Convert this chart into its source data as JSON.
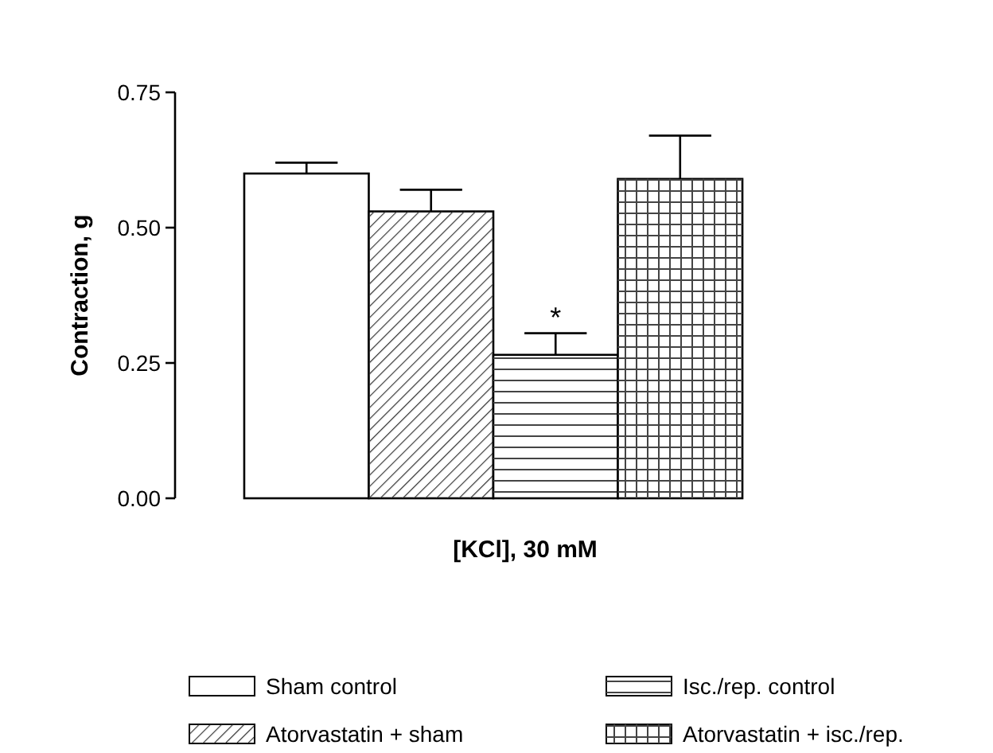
{
  "chart_data": {
    "type": "bar",
    "xlabel": "[KCl], 30 mM",
    "ylabel": "Contraction, g",
    "categories": [
      null
    ],
    "series": [
      {
        "name": "Sham control",
        "color": "#ffffff",
        "values": [
          0.6
        ],
        "errors": [
          0.02
        ]
      },
      {
        "name": "Atorvastatin + sham",
        "color": "#ffffff",
        "values": [
          0.53
        ],
        "errors": [
          0.04
        ]
      },
      {
        "name": "Isc./rep. control",
        "color": "#ffffff",
        "values": [
          0.265
        ],
        "errors": [
          0.04
        ]
      },
      {
        "name": "Atorvastatin + isc./rep.",
        "color": "#ffffff",
        "values": [
          0.59
        ],
        "errors": [
          0.08
        ]
      }
    ],
    "ylim": [
      0,
      0.75
    ],
    "yticks": [
      {
        "value": 0,
        "label": "0.00"
      },
      0.25,
      {
        "value": 0.5,
        "label": "0.50"
      },
      0.75
    ],
    "annotations": [
      "*"
    ],
    "legend": "bottom",
    "grid": false
  }
}
